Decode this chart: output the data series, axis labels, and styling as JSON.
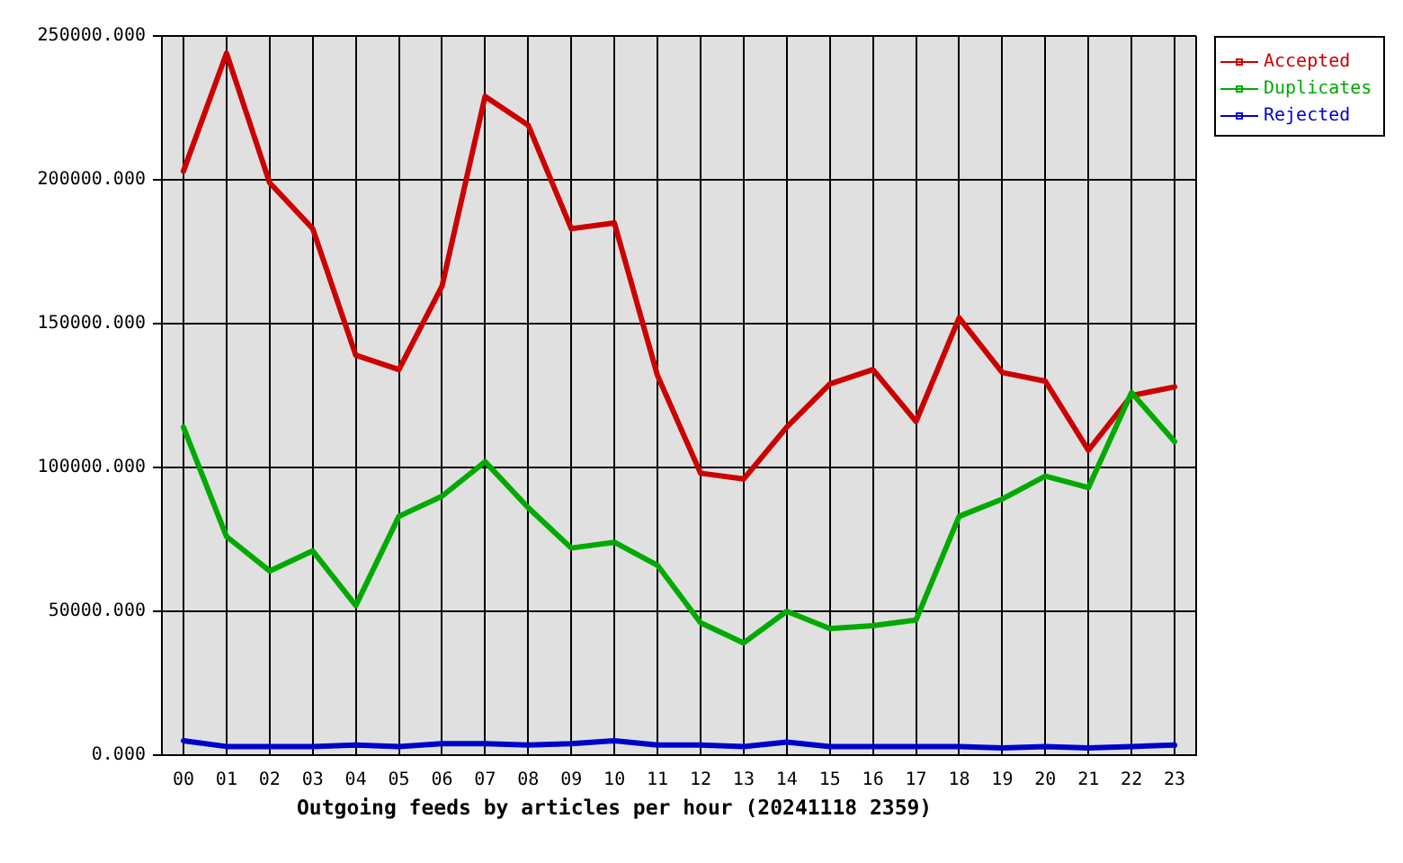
{
  "chart_data": {
    "type": "line",
    "xlabel": "Outgoing feeds by articles per hour (20241118 2359)",
    "categories": [
      "00",
      "01",
      "02",
      "03",
      "04",
      "05",
      "06",
      "07",
      "08",
      "09",
      "10",
      "11",
      "12",
      "13",
      "14",
      "15",
      "16",
      "17",
      "18",
      "19",
      "20",
      "21",
      "22",
      "23"
    ],
    "series": [
      {
        "name": "Accepted",
        "color": "#cc0000",
        "values": [
          203000,
          244000,
          199000,
          183000,
          139000,
          134000,
          163000,
          229000,
          219000,
          183000,
          185000,
          132000,
          98000,
          96000,
          114000,
          129000,
          134000,
          116000,
          152000,
          133000,
          130000,
          106000,
          125000,
          128000
        ]
      },
      {
        "name": "Duplicates",
        "color": "#00aa00",
        "values": [
          114000,
          76000,
          64000,
          71000,
          52000,
          83000,
          90000,
          102000,
          86000,
          72000,
          74000,
          66000,
          46000,
          39000,
          50000,
          44000,
          45000,
          47000,
          83000,
          89000,
          97000,
          93000,
          126000,
          109000
        ]
      },
      {
        "name": "Rejected",
        "color": "#0000cc",
        "values": [
          5000,
          3000,
          3000,
          3000,
          3500,
          3000,
          4000,
          4000,
          3500,
          4000,
          5000,
          3500,
          3500,
          3000,
          4500,
          3000,
          3000,
          3000,
          3000,
          2500,
          3000,
          2500,
          3000,
          3500
        ]
      }
    ],
    "ylim": [
      0,
      250000
    ],
    "yticks": [
      {
        "value": 0,
        "label": "0.000"
      },
      {
        "value": 50000,
        "label": "50000.000"
      },
      {
        "value": 100000,
        "label": "100000.000"
      },
      {
        "value": 150000,
        "label": "150000.000"
      },
      {
        "value": 200000,
        "label": "200000.000"
      },
      {
        "value": 250000,
        "label": "250000.000"
      }
    ],
    "grid": true,
    "legend": "top right"
  }
}
